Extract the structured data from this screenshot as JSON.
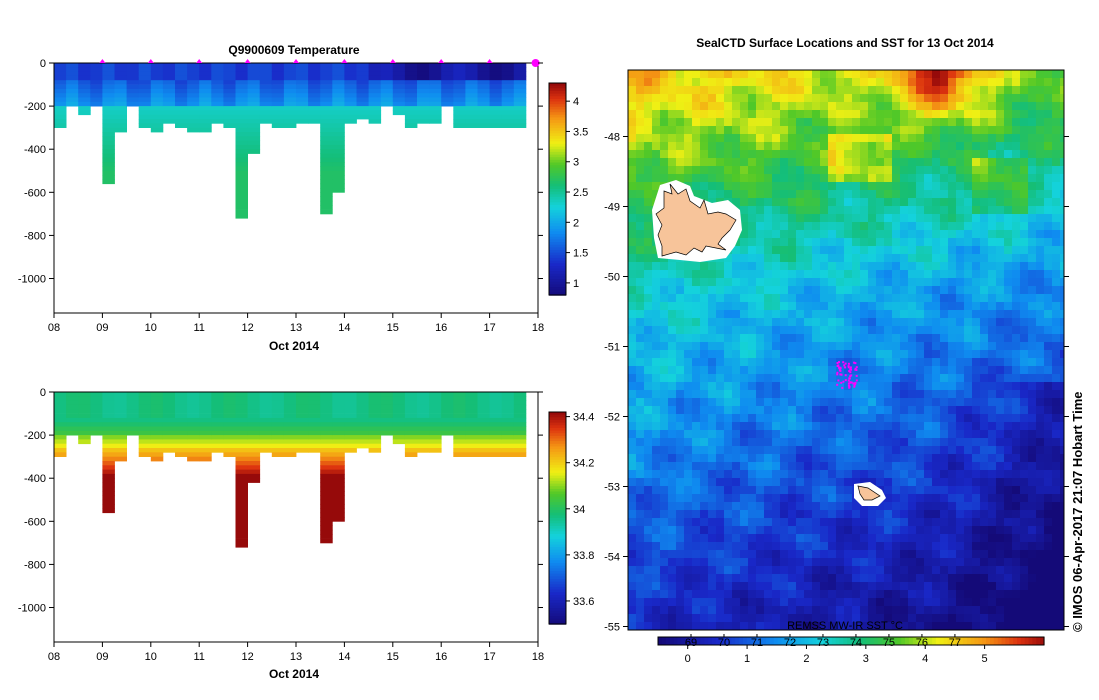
{
  "chart_data": [
    {
      "type": "heatmap",
      "title": "Q9900609  Temperature",
      "xlabel": "Oct 2014",
      "ylabel": "",
      "x_ticks": [
        "08",
        "09",
        "10",
        "11",
        "12",
        "13",
        "14",
        "15",
        "16",
        "17",
        "18"
      ],
      "xlim": [
        8,
        18
      ],
      "y_ticks": [
        "0",
        "-200",
        "-400",
        "-600",
        "-800",
        "-1000"
      ],
      "y_tick_values": [
        0,
        -200,
        -400,
        -600,
        -800,
        -1000
      ],
      "ylim": [
        -1160,
        0
      ],
      "colorbar_ticks": [
        "4",
        "3.5",
        "3",
        "2.5",
        "2",
        "1.5",
        "1"
      ],
      "colorbar_values": [
        4,
        3.5,
        3,
        2.5,
        2,
        1.5,
        1
      ],
      "colorbar_range": [
        0.8,
        4.3
      ],
      "profile_dates": [
        8.0,
        8.25,
        8.5,
        8.75,
        9.0,
        9.25,
        9.5,
        9.75,
        10.0,
        10.25,
        10.5,
        10.75,
        11.0,
        11.25,
        11.5,
        11.75,
        12.0,
        12.25,
        12.5,
        12.75,
        13.0,
        13.25,
        13.5,
        13.75,
        14.0,
        14.25,
        14.5,
        14.75,
        15.0,
        15.25,
        15.5,
        15.75,
        16.0,
        16.25,
        16.5,
        16.75,
        17.0,
        17.25,
        17.5
      ],
      "profile_max_depth": [
        -290,
        -200,
        -240,
        -200,
        -550,
        -320,
        -200,
        -300,
        -305,
        -280,
        -290,
        -310,
        -310,
        -280,
        -290,
        -720,
        -410,
        -270,
        -300,
        -300,
        -280,
        -280,
        -700,
        -590,
        -280,
        -250,
        -270,
        -200,
        -230,
        -300,
        -280,
        -270,
        -200,
        -290,
        -290,
        -290,
        -290,
        -290,
        -290
      ],
      "marker_dates": [
        9,
        10,
        11,
        12,
        13,
        14,
        15,
        16,
        17
      ],
      "last_marker_date": 18
    },
    {
      "type": "heatmap",
      "title": "",
      "xlabel": "Oct 2014",
      "ylabel": "",
      "x_ticks": [
        "08",
        "09",
        "10",
        "11",
        "12",
        "13",
        "14",
        "15",
        "16",
        "17",
        "18"
      ],
      "xlim": [
        8,
        18
      ],
      "y_ticks": [
        "0",
        "-200",
        "-400",
        "-600",
        "-800",
        "-1000"
      ],
      "y_tick_values": [
        0,
        -200,
        -400,
        -600,
        -800,
        -1000
      ],
      "ylim": [
        -1160,
        0
      ],
      "colorbar_ticks": [
        "34.4",
        "34.2",
        "34",
        "33.8",
        "33.6"
      ],
      "colorbar_values": [
        34.4,
        34.2,
        34,
        33.8,
        33.6
      ],
      "colorbar_range": [
        33.5,
        34.42
      ]
    },
    {
      "type": "heatmap",
      "title": "SealCTD Surface Locations and SST for 13 Oct 2014",
      "y_ticks": [
        "-48",
        "-49",
        "-50",
        "-51",
        "-52",
        "-53",
        "-54",
        "-55"
      ],
      "y_tick_values": [
        -48,
        -49,
        -50,
        -51,
        -52,
        -53,
        -54,
        -55
      ],
      "ylim": [
        -55.05,
        -47.05
      ],
      "colorbar_label": "REMSS  MW-IR SST °C",
      "colorbar_top_ticks": [
        "69",
        "70",
        "71",
        "72",
        "73",
        "74",
        "75",
        "76",
        "77"
      ],
      "colorbar_bottom_ticks": [
        "0",
        "1",
        "2",
        "3",
        "4",
        "5"
      ],
      "colorbar_bottom_values": [
        0,
        1,
        2,
        3,
        4,
        5
      ],
      "colorbar_range": [
        -0.5,
        6.0
      ]
    }
  ],
  "side_label": "© IMOS 06-Apr-2017 21:07 Hobart Time",
  "colors": {
    "marker": "#ff00ff",
    "island": "#f7c49a"
  }
}
